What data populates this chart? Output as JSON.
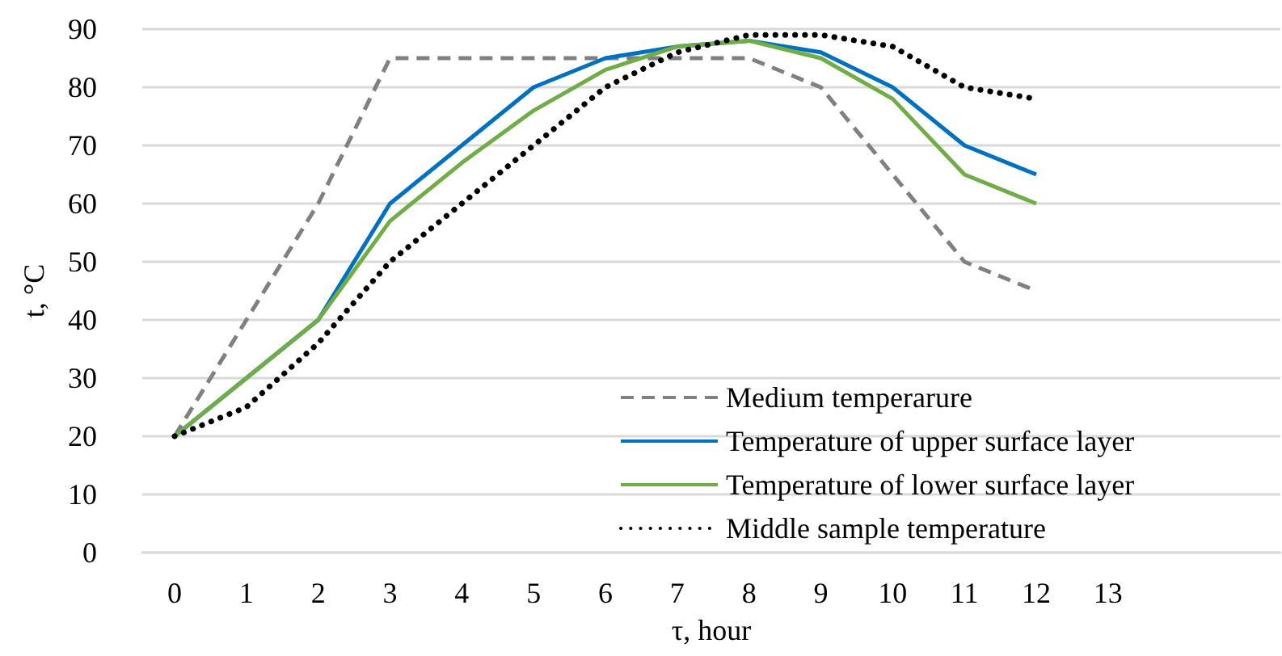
{
  "chart_data": {
    "type": "line",
    "xlabel": "τ, hour",
    "ylabel": "t, °C",
    "x": [
      0,
      1,
      2,
      3,
      4,
      5,
      6,
      7,
      8,
      9,
      10,
      11,
      12
    ],
    "xlim": [
      -0.45,
      15.4
    ],
    "xticks": [
      0,
      1,
      2,
      3,
      4,
      5,
      6,
      7,
      8,
      9,
      10,
      11,
      12,
      13
    ],
    "ylim": [
      0,
      90
    ],
    "yticks": [
      0,
      10,
      20,
      30,
      40,
      50,
      60,
      70,
      80,
      90
    ],
    "grid": "y",
    "legend": "bottom right",
    "marker": "none",
    "series": [
      {
        "name": "Medium temperarure",
        "color": "#808080",
        "line_style": "dashed",
        "values": [
          20,
          40,
          60,
          85,
          85,
          85,
          85,
          85,
          85,
          80,
          65,
          50,
          45
        ]
      },
      {
        "name": "Temperature of upper surface layer",
        "color": "#0070c0",
        "line_style": "solid",
        "values": [
          20,
          30,
          40,
          60,
          70,
          80,
          85,
          87,
          88,
          86,
          80,
          70,
          65
        ]
      },
      {
        "name": "Temperature of lower surface layer",
        "color": "#70ad47",
        "line_style": "solid",
        "values": [
          20,
          30,
          40,
          57,
          67,
          76,
          83,
          87,
          88,
          85,
          78,
          65,
          60
        ]
      },
      {
        "name": "Middle sample temperature",
        "color": "#000000",
        "line_style": "dotted",
        "values": [
          20,
          25,
          36,
          50,
          60,
          70,
          80,
          86,
          89,
          89,
          87,
          80,
          78
        ]
      }
    ]
  }
}
